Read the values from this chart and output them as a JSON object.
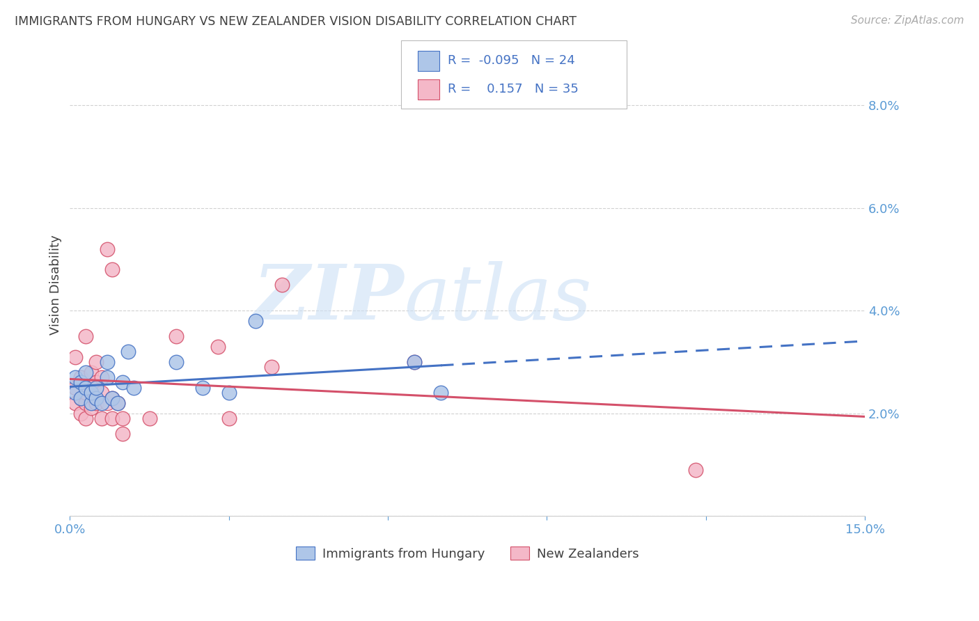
{
  "title": "IMMIGRANTS FROM HUNGARY VS NEW ZEALANDER VISION DISABILITY CORRELATION CHART",
  "source": "Source: ZipAtlas.com",
  "ylabel": "Vision Disability",
  "xlim": [
    0.0,
    0.15
  ],
  "ylim": [
    0.0,
    0.09
  ],
  "hungary_x": [
    0.001,
    0.001,
    0.002,
    0.002,
    0.003,
    0.003,
    0.004,
    0.004,
    0.005,
    0.005,
    0.006,
    0.007,
    0.007,
    0.008,
    0.009,
    0.01,
    0.011,
    0.012,
    0.02,
    0.025,
    0.03,
    0.035,
    0.065,
    0.07
  ],
  "hungary_y": [
    0.024,
    0.027,
    0.023,
    0.026,
    0.025,
    0.028,
    0.022,
    0.024,
    0.023,
    0.025,
    0.022,
    0.03,
    0.027,
    0.023,
    0.022,
    0.026,
    0.032,
    0.025,
    0.03,
    0.025,
    0.024,
    0.038,
    0.03,
    0.024
  ],
  "nz_x": [
    0.001,
    0.001,
    0.001,
    0.002,
    0.002,
    0.002,
    0.003,
    0.003,
    0.003,
    0.003,
    0.004,
    0.004,
    0.004,
    0.005,
    0.005,
    0.005,
    0.006,
    0.006,
    0.006,
    0.007,
    0.007,
    0.008,
    0.008,
    0.008,
    0.009,
    0.01,
    0.01,
    0.015,
    0.02,
    0.028,
    0.03,
    0.038,
    0.04,
    0.065,
    0.118
  ],
  "nz_y": [
    0.022,
    0.025,
    0.031,
    0.02,
    0.023,
    0.027,
    0.019,
    0.022,
    0.024,
    0.035,
    0.021,
    0.025,
    0.028,
    0.022,
    0.026,
    0.03,
    0.019,
    0.024,
    0.027,
    0.022,
    0.052,
    0.019,
    0.023,
    0.048,
    0.022,
    0.016,
    0.019,
    0.019,
    0.035,
    0.033,
    0.019,
    0.029,
    0.045,
    0.03,
    0.009
  ],
  "hungary_color": "#aec6e8",
  "hungary_edge_color": "#4472c4",
  "nz_color": "#f4b8c8",
  "nz_edge_color": "#d4506a",
  "trend_hungary_color": "#4472c4",
  "trend_nz_color": "#d4506a",
  "background_color": "#ffffff",
  "grid_color": "#cccccc",
  "axis_color": "#5b9bd5",
  "legend_text_color": "#4472c4",
  "title_color": "#404040",
  "R_hungary": -0.095,
  "N_hungary": 24,
  "R_nz": 0.157,
  "N_nz": 35,
  "legend_label_hungary": "Immigrants from Hungary",
  "legend_label_nz": "New Zealanders"
}
